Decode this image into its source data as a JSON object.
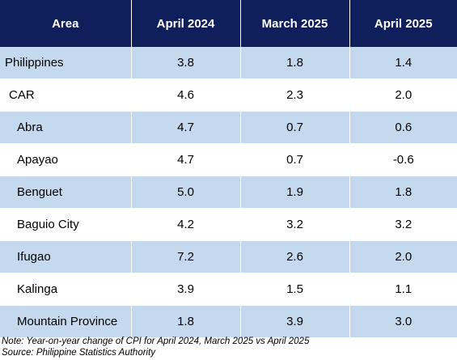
{
  "table": {
    "headers": [
      "Area",
      "April 2024",
      "March 2025",
      "April 2025"
    ],
    "rows": [
      {
        "area": "Philippines",
        "level": 0,
        "values": [
          "3.8",
          "1.8",
          "1.4"
        ]
      },
      {
        "area": "CAR",
        "level": 1,
        "values": [
          "4.6",
          "2.3",
          "2.0"
        ]
      },
      {
        "area": "Abra",
        "level": 2,
        "values": [
          "4.7",
          "0.7",
          "0.6"
        ]
      },
      {
        "area": "Apayao",
        "level": 2,
        "values": [
          "4.7",
          "0.7",
          "-0.6"
        ]
      },
      {
        "area": "Benguet",
        "level": 2,
        "values": [
          "5.0",
          "1.9",
          "1.8"
        ]
      },
      {
        "area": "Baguio City",
        "level": 2,
        "values": [
          "4.2",
          "3.2",
          "3.2"
        ]
      },
      {
        "area": "Ifugao",
        "level": 2,
        "values": [
          "7.2",
          "2.6",
          "2.0"
        ]
      },
      {
        "area": "Kalinga",
        "level": 2,
        "values": [
          "3.9",
          "1.5",
          "1.1"
        ]
      },
      {
        "area": "Mountain Province",
        "level": 2,
        "values": [
          "1.8",
          "3.9",
          "3.0"
        ]
      }
    ]
  },
  "footnotes": {
    "note": "Note: Year-on-year change of CPI for April 2024, March 2025 vs April 2025",
    "source": "Source: Philippine Statistics Authority"
  },
  "colors": {
    "header_bg": "#0e1f5b",
    "header_text": "#ffffff",
    "band_row_bg": "#c5d9ee",
    "plain_row_bg": "#ffffff"
  }
}
